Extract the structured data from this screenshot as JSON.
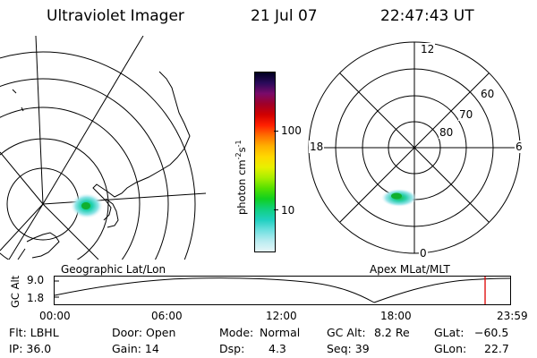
{
  "header": {
    "title": "Ultraviolet Imager",
    "date": "21 Jul 07",
    "time": "22:47:43 UT"
  },
  "geo_panel": {
    "label": "Geographic Lat/Lon"
  },
  "polar_panel": {
    "label": "Apex MLat/MLT",
    "mlt_labels": {
      "top": "12",
      "left": "18",
      "right": "6",
      "bottom": "0"
    },
    "lat_labels": [
      "60",
      "70",
      "80"
    ]
  },
  "colorbar": {
    "unit_main": "photon cm",
    "unit_exp1": "-2",
    "unit_s": "s",
    "unit_exp2": "-1",
    "ticks": [
      "100",
      "10"
    ],
    "colors": [
      "#000020",
      "#2a0a5a",
      "#7a0a6a",
      "#a00028",
      "#d00000",
      "#ff2000",
      "#ff7000",
      "#ffb000",
      "#ffd800",
      "#e8f000",
      "#a8ee00",
      "#55e000",
      "#10d020",
      "#10d080",
      "#20d0c0",
      "#70e0e0",
      "#b8ecf0",
      "#e6f6f8"
    ]
  },
  "altitude_plot": {
    "ylabel": "GC Alt",
    "yticks": [
      "9.0",
      "1.8"
    ],
    "xticks": [
      "00:00",
      "06:00",
      "12:00",
      "18:00",
      "23:59"
    ],
    "marker_color": "#dd0000",
    "current_time_fraction": 0.945
  },
  "info": {
    "filter": "Flt: LBHL",
    "ip": "IP: 36.0",
    "door": "Door: Open",
    "gain": "Gain: 14",
    "mode_label": "Mode:",
    "mode_value": "Normal",
    "dsp_label": "Dsp:",
    "dsp_value": "4.3",
    "gcalt_label": "GC Alt:",
    "gcalt_value": "8.2 Re",
    "seq": "Seq: 39",
    "glat_label": "GLat:",
    "glat_value": "−60.5",
    "glon_label": "GLon:",
    "glon_value": "22.7"
  }
}
